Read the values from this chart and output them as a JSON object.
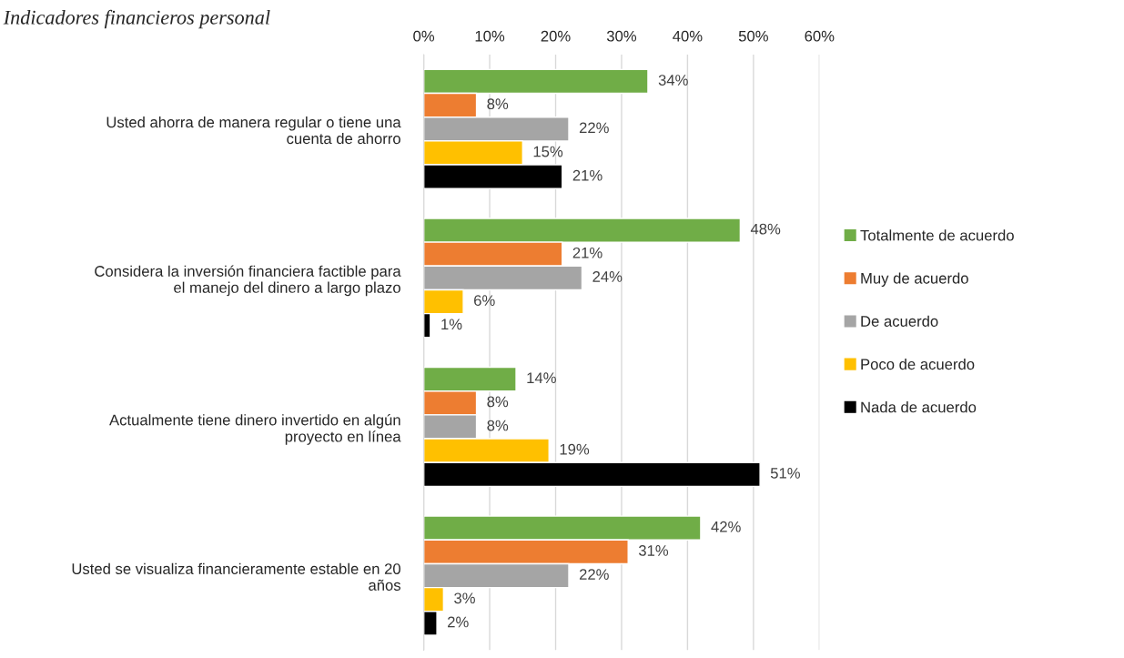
{
  "chart_data": {
    "type": "bar",
    "orientation": "horizontal",
    "title": "Indicadores financieros personal",
    "categories": [
      "Usted ahorra de manera regular o tiene una cuenta de ahorro",
      "Considera la inversión financiera factible para el manejo del dinero a largo plazo",
      "Actualmente tiene dinero invertido en algún proyecto en línea",
      "Usted se visualiza financieramente estable en 20 años"
    ],
    "series": [
      {
        "name": "Totalmente de acuerdo",
        "color": "#70ad47",
        "values": [
          34,
          48,
          14,
          42
        ],
        "value_labels": [
          "34%",
          "48%",
          "14%",
          "42%"
        ]
      },
      {
        "name": "Muy de acuerdo",
        "color": "#ed7d31",
        "values": [
          8,
          21,
          8,
          31
        ],
        "value_labels": [
          "8%",
          "21%",
          "8%",
          "31%"
        ]
      },
      {
        "name": "De acuerdo",
        "color": "#a5a5a5",
        "values": [
          22,
          24,
          8,
          22
        ],
        "value_labels": [
          "22%",
          "24%",
          "8%",
          "22%"
        ]
      },
      {
        "name": "Poco de acuerdo",
        "color": "#ffc000",
        "values": [
          15,
          6,
          19,
          3
        ],
        "value_labels": [
          "15%",
          "6%",
          "19%",
          "3%"
        ]
      },
      {
        "name": "Nada de acuerdo",
        "color": "#000000",
        "values": [
          21,
          1,
          51,
          2
        ],
        "value_labels": [
          "21%",
          "1%",
          "51%",
          "2%"
        ]
      }
    ],
    "xlim": [
      0,
      60
    ],
    "xticks": [
      {
        "value": 0,
        "label": "0%"
      },
      {
        "value": 10,
        "label": "10%"
      },
      {
        "value": 20,
        "label": "20%"
      },
      {
        "value": 30,
        "label": "30%"
      },
      {
        "value": 40,
        "label": "40%"
      },
      {
        "value": 50,
        "label": "50%"
      },
      {
        "value": 60,
        "label": "60%"
      }
    ],
    "grid": "x",
    "legend": "right"
  }
}
